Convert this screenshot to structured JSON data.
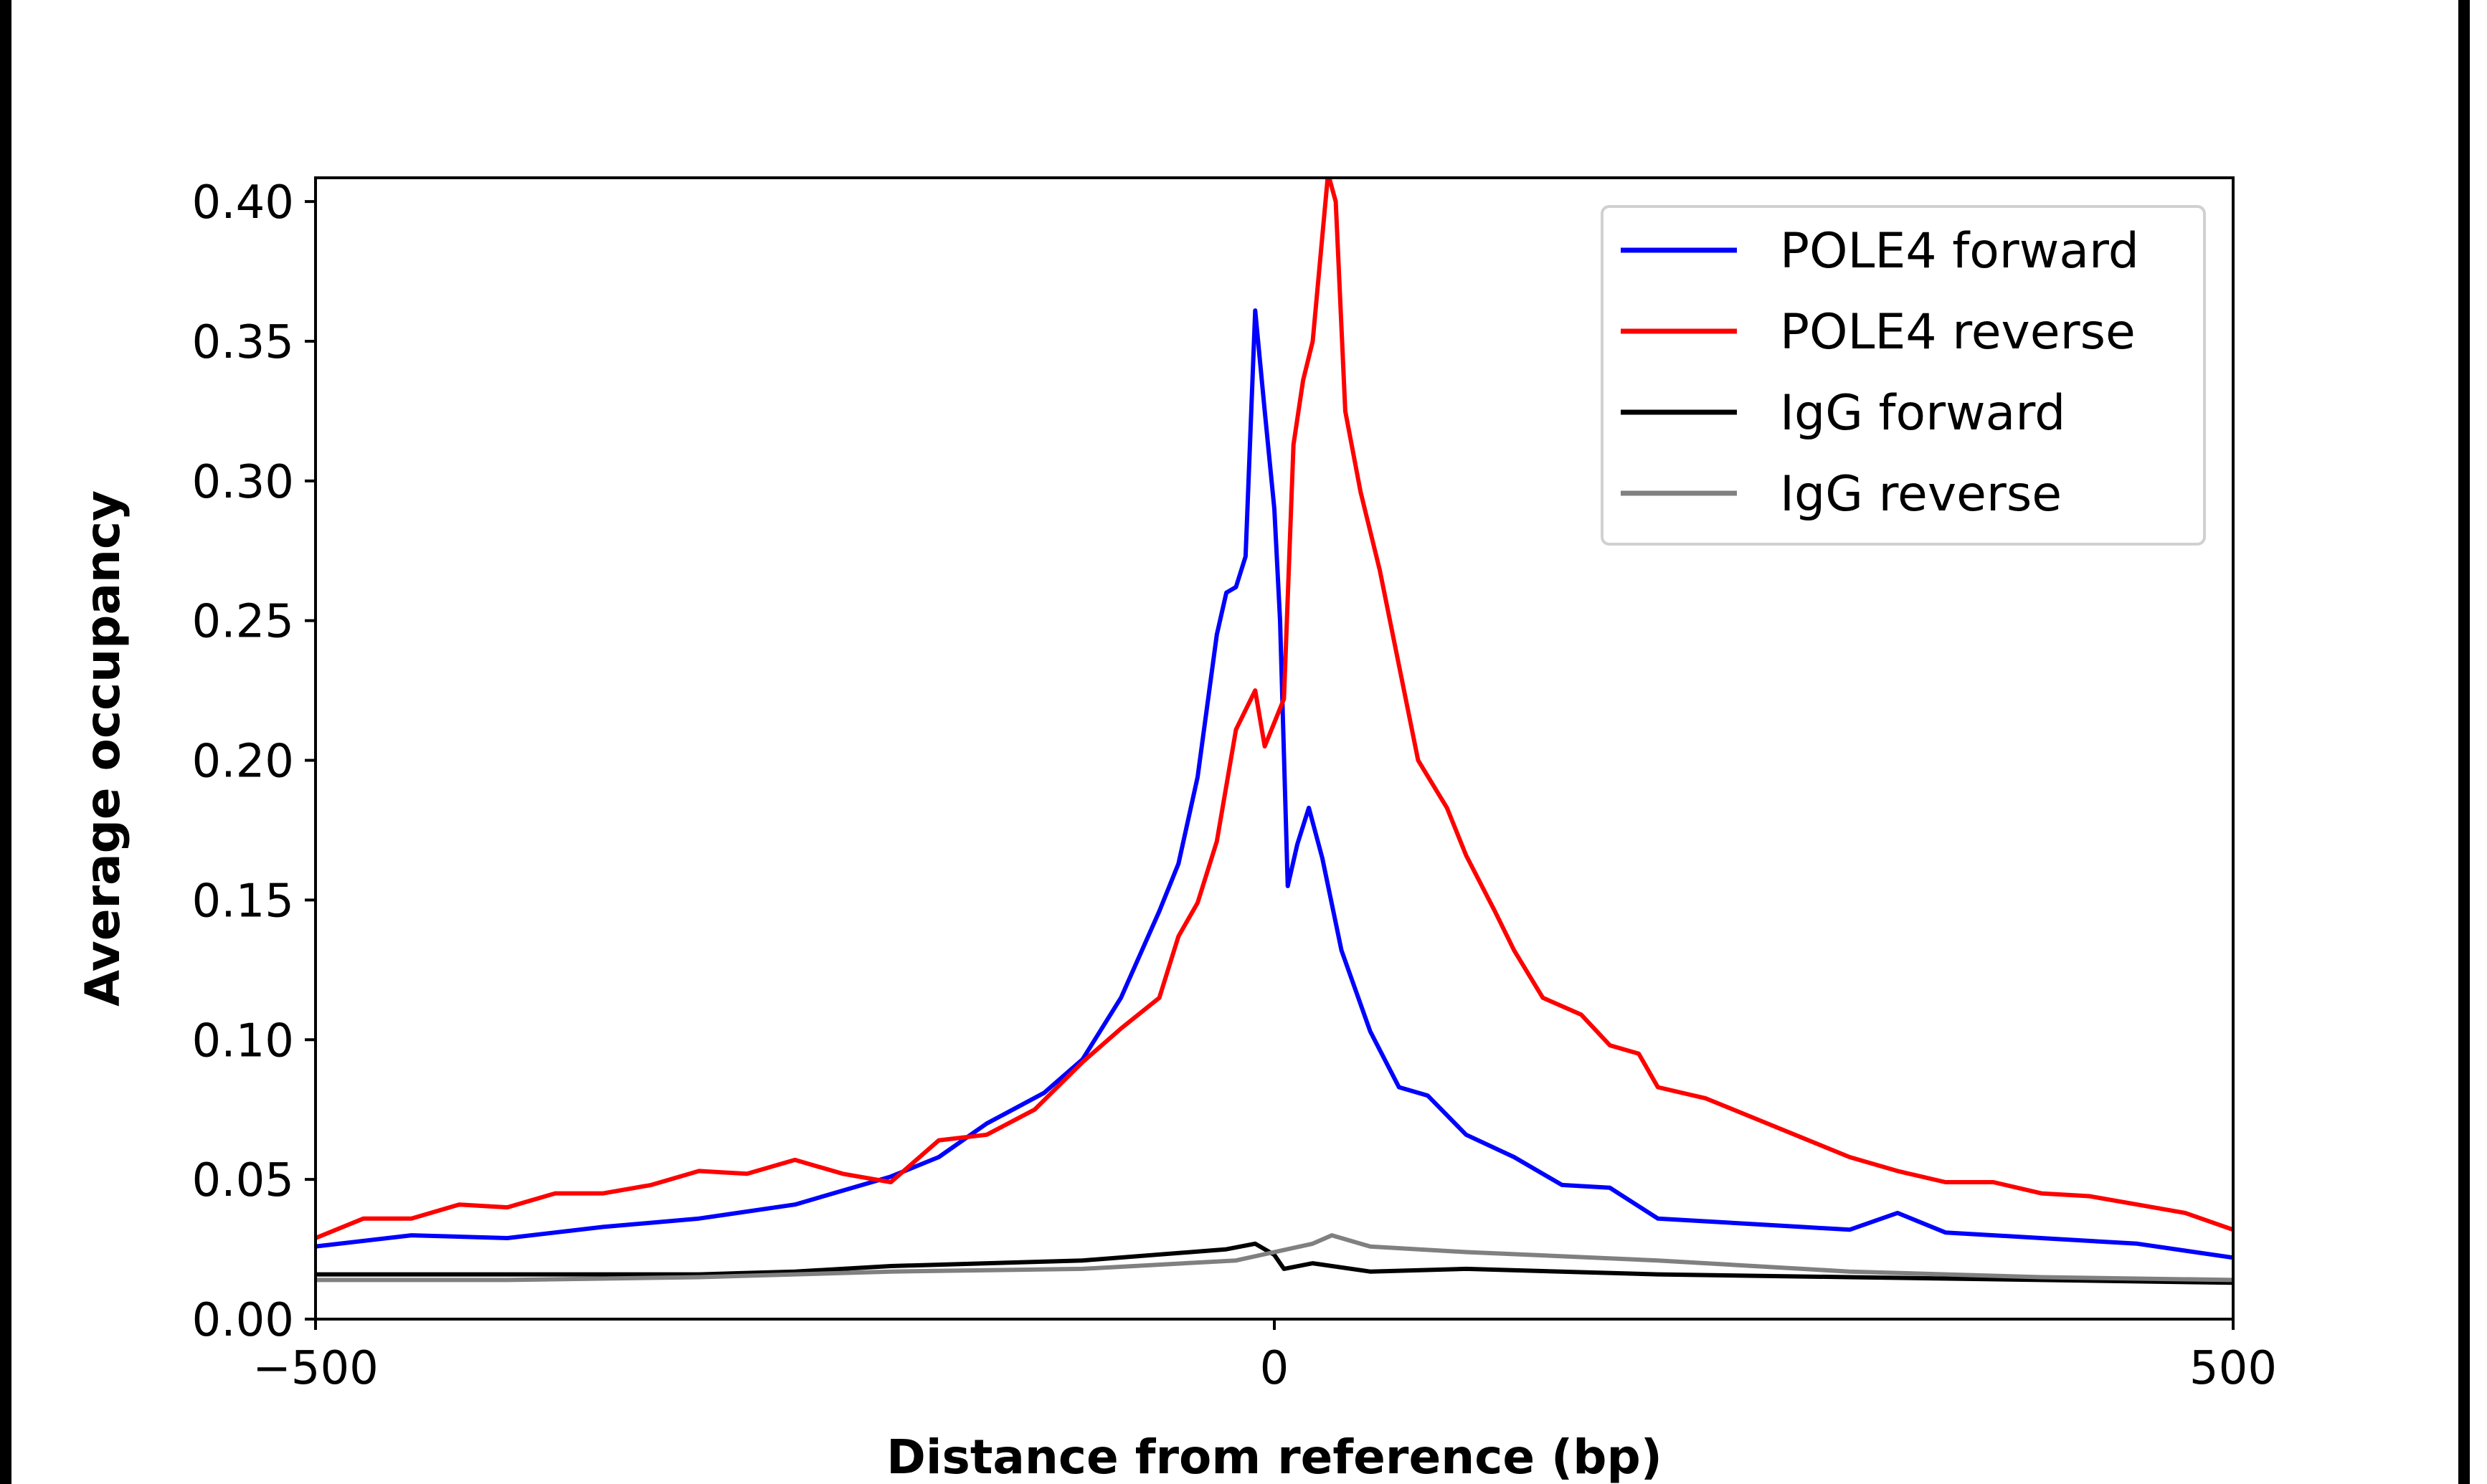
{
  "chart_data": {
    "type": "line",
    "title": "",
    "xlabel": "Distance from reference (bp)",
    "ylabel": "Average occupancy",
    "xlim": [
      -500,
      500
    ],
    "ylim": [
      0,
      0.4085
    ],
    "xticks": [
      -500,
      0,
      500
    ],
    "xtick_labels": [
      "−500",
      "0",
      "500"
    ],
    "yticks": [
      0.0,
      0.05,
      0.1,
      0.15,
      0.2,
      0.25,
      0.3,
      0.35,
      0.4
    ],
    "ytick_labels": [
      "0.00",
      "0.05",
      "0.10",
      "0.15",
      "0.20",
      "0.25",
      "0.30",
      "0.35",
      "0.40"
    ],
    "grid": false,
    "legend_position": "top-right",
    "series": [
      {
        "name": "POLE4 forward",
        "color": "#0000ff",
        "x": [
          -500,
          -450,
          -400,
          -350,
          -300,
          -250,
          -200,
          -175,
          -150,
          -120,
          -100,
          -80,
          -60,
          -50,
          -40,
          -30,
          -25,
          -20,
          -15,
          -10,
          -5,
          0,
          3,
          7,
          12,
          18,
          25,
          35,
          50,
          65,
          80,
          100,
          125,
          150,
          175,
          200,
          250,
          275,
          300,
          325,
          350,
          400,
          450,
          500
        ],
        "y": [
          0.026,
          0.03,
          0.029,
          0.033,
          0.036,
          0.041,
          0.051,
          0.058,
          0.07,
          0.081,
          0.093,
          0.115,
          0.146,
          0.163,
          0.194,
          0.245,
          0.26,
          0.262,
          0.273,
          0.361,
          0.325,
          0.29,
          0.25,
          0.155,
          0.17,
          0.183,
          0.165,
          0.132,
          0.103,
          0.083,
          0.08,
          0.066,
          0.058,
          0.048,
          0.047,
          0.036,
          0.034,
          0.033,
          0.032,
          0.038,
          0.031,
          0.029,
          0.027,
          0.022
        ]
      },
      {
        "name": "POLE4 reverse",
        "color": "#ff0000",
        "x": [
          -500,
          -475,
          -450,
          -425,
          -400,
          -375,
          -350,
          -325,
          -300,
          -275,
          -250,
          -225,
          -200,
          -175,
          -150,
          -125,
          -100,
          -80,
          -60,
          -50,
          -40,
          -30,
          -20,
          -10,
          -5,
          5,
          10,
          15,
          20,
          28,
          32,
          37,
          45,
          55,
          65,
          75,
          90,
          100,
          115,
          125,
          140,
          160,
          175,
          190,
          200,
          225,
          250,
          275,
          300,
          325,
          350,
          375,
          400,
          425,
          450,
          475,
          500
        ],
        "y": [
          0.029,
          0.036,
          0.036,
          0.041,
          0.04,
          0.045,
          0.045,
          0.048,
          0.053,
          0.052,
          0.057,
          0.052,
          0.049,
          0.064,
          0.066,
          0.075,
          0.092,
          0.104,
          0.115,
          0.137,
          0.149,
          0.171,
          0.211,
          0.225,
          0.205,
          0.222,
          0.313,
          0.336,
          0.35,
          0.41,
          0.4,
          0.325,
          0.296,
          0.268,
          0.234,
          0.2,
          0.183,
          0.166,
          0.146,
          0.132,
          0.115,
          0.109,
          0.098,
          0.095,
          0.083,
          0.079,
          0.072,
          0.065,
          0.058,
          0.053,
          0.049,
          0.049,
          0.045,
          0.044,
          0.041,
          0.038,
          0.032
        ]
      },
      {
        "name": "IgG forward",
        "color": "#000000",
        "x": [
          -500,
          -400,
          -300,
          -250,
          -200,
          -100,
          -25,
          -10,
          0,
          5,
          20,
          50,
          100,
          200,
          300,
          400,
          500
        ],
        "y": [
          0.016,
          0.016,
          0.016,
          0.017,
          0.019,
          0.021,
          0.025,
          0.027,
          0.023,
          0.018,
          0.02,
          0.017,
          0.018,
          0.016,
          0.015,
          0.014,
          0.013
        ]
      },
      {
        "name": "IgG reverse",
        "color": "#808080",
        "x": [
          -500,
          -400,
          -300,
          -200,
          -100,
          -20,
          0,
          20,
          30,
          50,
          100,
          200,
          250,
          300,
          400,
          500
        ],
        "y": [
          0.014,
          0.014,
          0.015,
          0.017,
          0.018,
          0.021,
          0.024,
          0.027,
          0.03,
          0.026,
          0.024,
          0.021,
          0.019,
          0.017,
          0.015,
          0.014
        ]
      }
    ]
  }
}
